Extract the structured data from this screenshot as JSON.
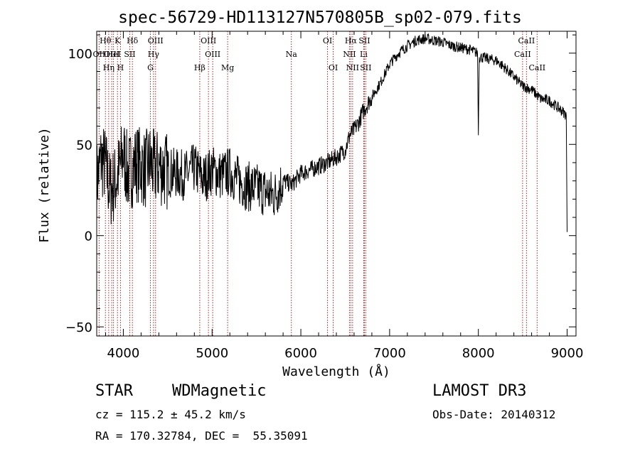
{
  "chart_data": {
    "type": "line",
    "title": "spec-56729-HD113127N570805B_sp02-079.fits",
    "xlabel": "Wavelength (Å)",
    "ylabel": "Flux (relative)",
    "xlim": [
      3700,
      9100
    ],
    "ylim": [
      -55,
      112
    ],
    "xticks": [
      {
        "value": 4000,
        "label": "4000"
      },
      {
        "value": 5000,
        "label": "5000"
      },
      {
        "value": 6000,
        "label": "6000"
      },
      {
        "value": 7000,
        "label": "7000"
      },
      {
        "value": 8000,
        "label": "8000"
      },
      {
        "value": 9000,
        "label": "9000"
      }
    ],
    "yticks": [
      {
        "value": -50,
        "label": "−50"
      },
      {
        "value": 0,
        "label": "0"
      },
      {
        "value": 50,
        "label": "50"
      },
      {
        "value": 100,
        "label": "100"
      }
    ],
    "series": [
      {
        "name": "flux",
        "x": [
          3700,
          3750,
          3800,
          3850,
          3900,
          3950,
          4000,
          4050,
          4100,
          4150,
          4200,
          4250,
          4300,
          4350,
          4400,
          4500,
          4600,
          4700,
          4800,
          4900,
          5000,
          5100,
          5200,
          5300,
          5400,
          5500,
          5600,
          5700,
          5800,
          5900,
          6000,
          6100,
          6200,
          6300,
          6400,
          6500,
          6550,
          6600,
          6650,
          6700,
          6800,
          6900,
          7000,
          7100,
          7200,
          7300,
          7400,
          7500,
          7600,
          7700,
          7800,
          7900,
          7990,
          8000,
          8010,
          8100,
          8200,
          8300,
          8400,
          8500,
          8600,
          8700,
          8800,
          8900,
          8950,
          8990,
          9000
        ],
        "y": [
          30,
          42,
          38,
          25,
          28,
          35,
          45,
          34,
          37,
          40,
          38,
          36,
          40,
          36,
          38,
          35,
          34,
          33,
          37,
          31,
          36,
          33,
          35,
          30,
          27,
          26,
          24,
          22,
          30,
          28,
          34,
          36,
          38,
          40,
          43,
          47,
          55,
          58,
          62,
          68,
          76,
          84,
          94,
          100,
          104,
          107,
          108,
          107,
          106,
          104,
          103,
          102,
          100,
          55,
          98,
          97,
          96,
          92,
          87,
          82,
          80,
          75,
          74,
          70,
          68,
          66,
          2
        ]
      }
    ],
    "lines": [
      {
        "wavelength": 3727,
        "label": "OII",
        "row": 2
      },
      {
        "wavelength": 3798,
        "label": "Hθ",
        "row": 1
      },
      {
        "wavelength": 3835,
        "label": "Hη",
        "row": 3
      },
      {
        "wavelength": 3869,
        "label": "OIII",
        "row": 2
      },
      {
        "wavelength": 3889,
        "label": "HeI",
        "row": 2
      },
      {
        "wavelength": 3934,
        "label": "K",
        "row": 1
      },
      {
        "wavelength": 3968,
        "label": "H",
        "row": 3
      },
      {
        "wavelength": 4072,
        "label": "SII",
        "row": 2
      },
      {
        "wavelength": 4102,
        "label": "Hδ",
        "row": 1
      },
      {
        "wavelength": 4305,
        "label": "G",
        "row": 3
      },
      {
        "wavelength": 4340,
        "label": "Hγ",
        "row": 2
      },
      {
        "wavelength": 4363,
        "label": "OIII",
        "row": 1
      },
      {
        "wavelength": 4861,
        "label": "Hβ",
        "row": 3
      },
      {
        "wavelength": 4959,
        "label": "OIII",
        "row": 1
      },
      {
        "wavelength": 5007,
        "label": "OIII",
        "row": 2
      },
      {
        "wavelength": 5175,
        "label": "Mg",
        "row": 3
      },
      {
        "wavelength": 5893,
        "label": "Na",
        "row": 2
      },
      {
        "wavelength": 6300,
        "label": "OI",
        "row": 1
      },
      {
        "wavelength": 6364,
        "label": "OI",
        "row": 3
      },
      {
        "wavelength": 6548,
        "label": "NII",
        "row": 2
      },
      {
        "wavelength": 6563,
        "label": "Hα",
        "row": 1
      },
      {
        "wavelength": 6583,
        "label": "NII",
        "row": 3
      },
      {
        "wavelength": 6708,
        "label": "Li",
        "row": 2
      },
      {
        "wavelength": 6716,
        "label": "SII",
        "row": 1
      },
      {
        "wavelength": 6731,
        "label": "SII",
        "row": 3
      },
      {
        "wavelength": 8498,
        "label": "CaII",
        "row": 2
      },
      {
        "wavelength": 8542,
        "label": "CaII",
        "row": 1
      },
      {
        "wavelength": 8662,
        "label": "CaII",
        "row": 3
      }
    ],
    "colors": {
      "spectrum": "#000000",
      "line_marker": "#b22222",
      "axis": "#000000"
    }
  },
  "info": {
    "class_label": "STAR",
    "subclass_label": "WDMagnetic",
    "survey": "LAMOST DR3",
    "cz": "cz = 115.2 ± 45.2 km/s",
    "obs_date": "Obs-Date: 20140312",
    "coords": "RA = 170.32784, DEC =  55.35091"
  }
}
